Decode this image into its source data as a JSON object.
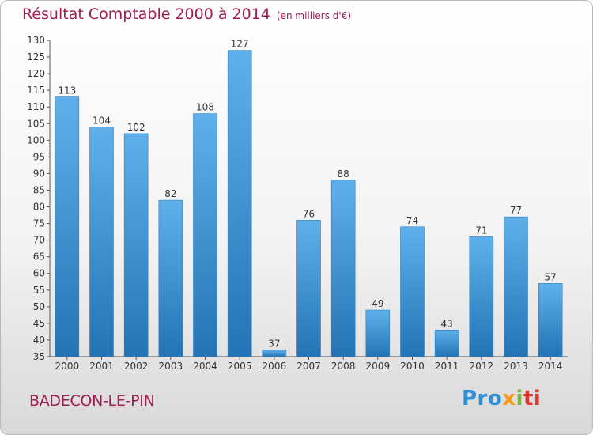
{
  "chart_data": {
    "type": "bar",
    "title": "Résultat Comptable 2000 à 2014",
    "subtitle": "(en milliers d'€)",
    "xlabel": "",
    "ylabel": "",
    "categories": [
      "2000",
      "2001",
      "2002",
      "2003",
      "2004",
      "2005",
      "2006",
      "2007",
      "2008",
      "2009",
      "2010",
      "2011",
      "2012",
      "2013",
      "2014"
    ],
    "values": [
      113,
      104,
      102,
      82,
      108,
      127,
      37,
      76,
      88,
      49,
      74,
      43,
      71,
      77,
      57
    ],
    "ylim": [
      35,
      130
    ],
    "ytick_step": 5,
    "grid": false,
    "legend": "none",
    "colors": {
      "bar_top": "#5fb0ea",
      "bar_bottom": "#2474b5",
      "title": "#a01c52"
    }
  },
  "footer": {
    "commune": "BADECON-LE-PIN",
    "logo": [
      "Pro",
      "x",
      "i",
      "ti"
    ]
  }
}
